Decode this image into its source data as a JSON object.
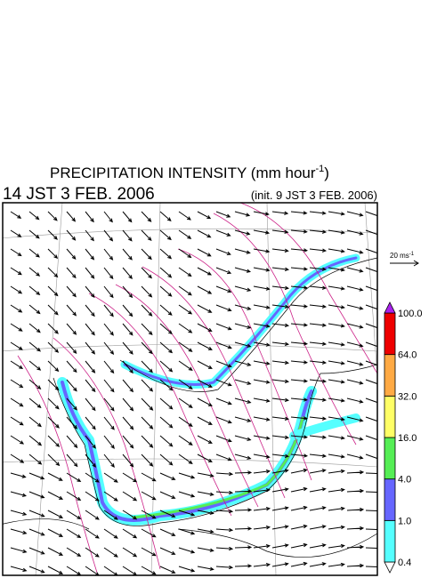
{
  "header": {
    "title": {
      "prefix": "PRECIPITATION INTENSITY (mm hour",
      "superscript": "-1",
      "suffix": ")"
    },
    "valid_time": "14 JST 3 FEB. 2006",
    "init_time": "(init. 9 JST 3 FEB. 2006)"
  },
  "reference_vector": {
    "prefix": "20 ms",
    "superscript": "-1"
  },
  "colorbar": {
    "levels": [
      {
        "value": 0.4,
        "label": "0.4"
      },
      {
        "value": 1.0,
        "label": "1.0"
      },
      {
        "value": 4.0,
        "label": "4.0"
      },
      {
        "value": 16.0,
        "label": "16.0"
      },
      {
        "value": 32.0,
        "label": "32.0"
      },
      {
        "value": 64.0,
        "label": "64.0"
      },
      {
        "value": 100.0,
        "label": "100.0"
      }
    ],
    "colors": [
      "#ffffff",
      "#55ffff",
      "#6666ff",
      "#55ee55",
      "#ffff66",
      "#ffaa44",
      "#ee0000",
      "#aa22ee"
    ]
  }
}
